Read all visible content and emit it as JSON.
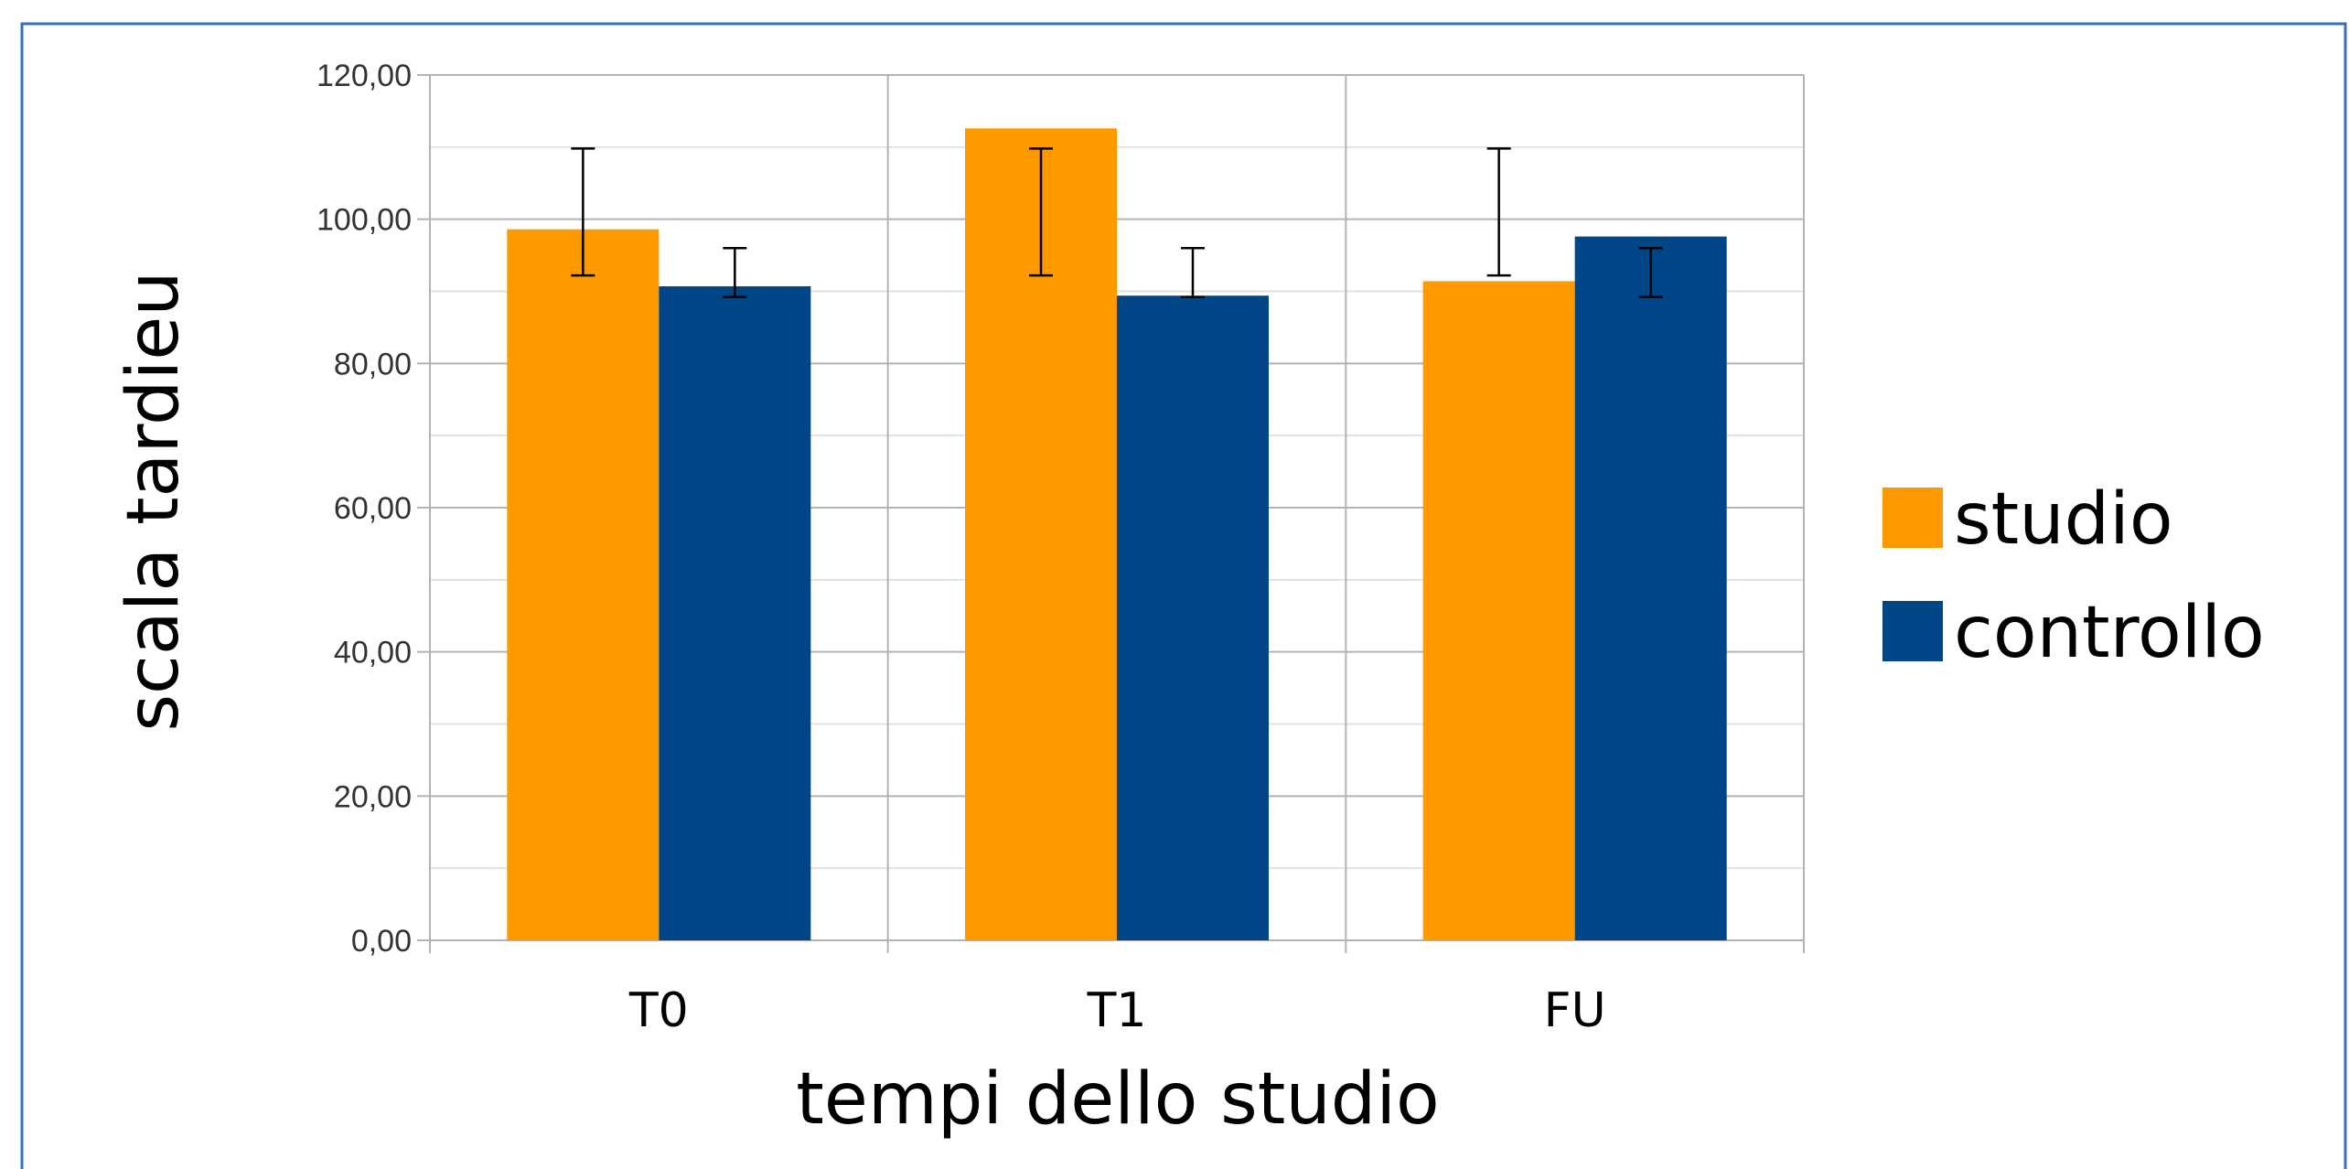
{
  "chart_data": {
    "type": "bar",
    "title": "",
    "xlabel": "tempi dello studio",
    "ylabel": "scala tardieu",
    "categories": [
      "T0",
      "T1",
      "FU"
    ],
    "ylim": [
      0,
      120
    ],
    "yticks": [
      0,
      20,
      40,
      60,
      80,
      100,
      120
    ],
    "ytick_labels": [
      "0,00",
      "20,00",
      "40,00",
      "60,00",
      "80,00",
      "100,00",
      "120,00"
    ],
    "grid": true,
    "legend_position": "right",
    "series": [
      {
        "name": "studio",
        "color": "#ff9900",
        "values": [
          98.6,
          112.6,
          91.4
        ],
        "error_low": [
          92.2,
          92.2,
          92.2
        ],
        "error_high": [
          109.8,
          109.8,
          109.8
        ]
      },
      {
        "name": "controllo",
        "color": "#004586",
        "values": [
          90.7,
          89.4,
          97.6
        ],
        "error_low": [
          89.2,
          89.2,
          89.2
        ],
        "error_high": [
          96.0,
          96.0,
          96.0
        ]
      }
    ]
  }
}
